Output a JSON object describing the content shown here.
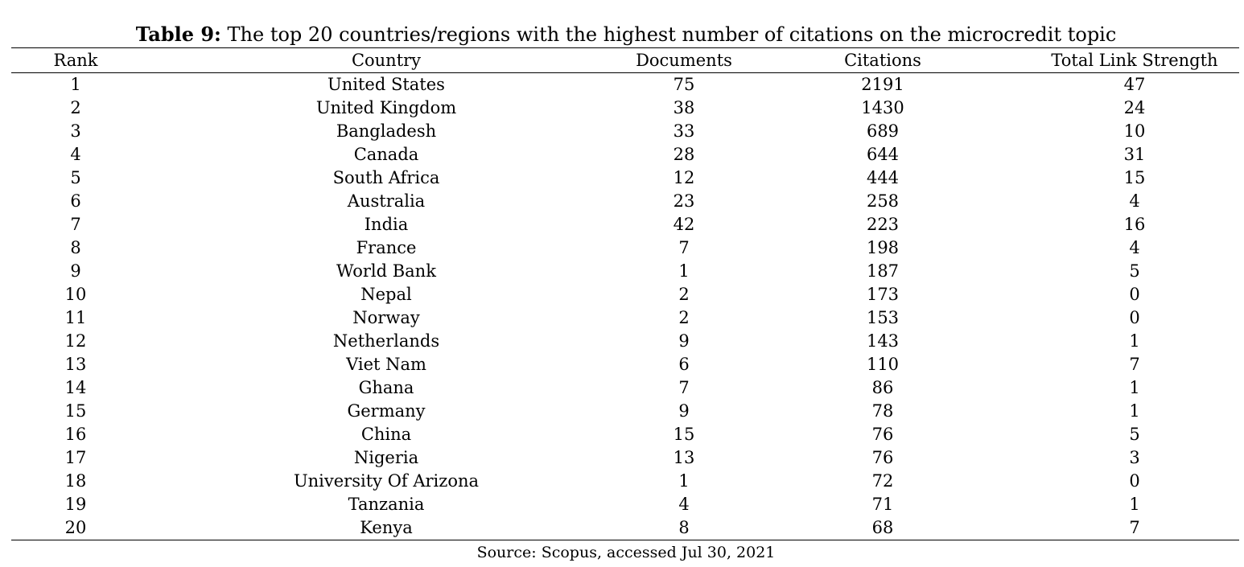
{
  "caption": {
    "label": "Table 9:",
    "text": " The top 20 countries/regions with the highest number of citations on the microcredit topic"
  },
  "table": {
    "headers": [
      "Rank",
      "Country",
      "Documents",
      "Citations",
      "Total Link Strength"
    ],
    "rows": [
      [
        "1",
        "United States",
        "75",
        "2191",
        "47"
      ],
      [
        "2",
        "United Kingdom",
        "38",
        "1430",
        "24"
      ],
      [
        "3",
        "Bangladesh",
        "33",
        "689",
        "10"
      ],
      [
        "4",
        "Canada",
        "28",
        "644",
        "31"
      ],
      [
        "5",
        "South Africa",
        "12",
        "444",
        "15"
      ],
      [
        "6",
        "Australia",
        "23",
        "258",
        "4"
      ],
      [
        "7",
        "India",
        "42",
        "223",
        "16"
      ],
      [
        "8",
        "France",
        "7",
        "198",
        "4"
      ],
      [
        "9",
        "World Bank",
        "1",
        "187",
        "5"
      ],
      [
        "10",
        "Nepal",
        "2",
        "173",
        "0"
      ],
      [
        "11",
        "Norway",
        "2",
        "153",
        "0"
      ],
      [
        "12",
        "Netherlands",
        "9",
        "143",
        "1"
      ],
      [
        "13",
        "Viet Nam",
        "6",
        "110",
        "7"
      ],
      [
        "14",
        "Ghana",
        "7",
        "86",
        "1"
      ],
      [
        "15",
        "Germany",
        "9",
        "78",
        "1"
      ],
      [
        "16",
        "China",
        "15",
        "76",
        "5"
      ],
      [
        "17",
        "Nigeria",
        "13",
        "76",
        "3"
      ],
      [
        "18",
        "University Of Arizona",
        "1",
        "72",
        "0"
      ],
      [
        "19",
        "Tanzania",
        "4",
        "71",
        "1"
      ],
      [
        "20",
        "Kenya",
        "8",
        "68",
        "7"
      ]
    ]
  },
  "source": "Source: Scopus, accessed Jul 30, 2021"
}
